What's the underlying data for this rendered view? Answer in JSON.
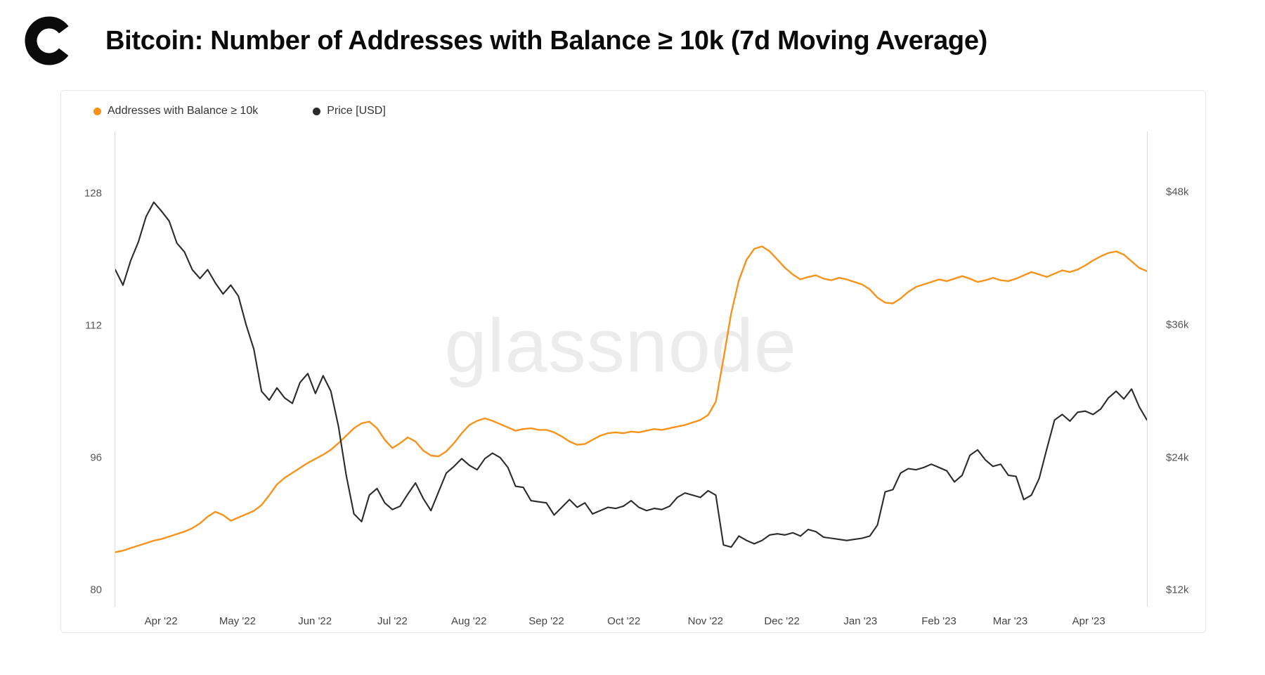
{
  "header": {
    "title": "Bitcoin: Number of Addresses with Balance ≥ 10k (7d Moving Average)",
    "logo_name": "glassnode-c-logo"
  },
  "watermark": "glassnode",
  "colors": {
    "addresses_line": "#f7931a",
    "price_line": "#2b2b2b",
    "axis_text": "#555555",
    "watermark": "#ececec"
  },
  "chart_data": {
    "type": "line",
    "title": "Bitcoin: Number of Addresses with Balance ≥ 10k (7d Moving Average)",
    "x_range": [
      "mid-Mar 2022",
      "late Apr 2023"
    ],
    "grid": "off",
    "legend_position": "top-left",
    "x_ticks": [
      {
        "label": "Apr '22",
        "pos": 0.045
      },
      {
        "label": "May '22",
        "pos": 0.119
      },
      {
        "label": "Jun '22",
        "pos": 0.194
      },
      {
        "label": "Jul '22",
        "pos": 0.269
      },
      {
        "label": "Aug '22",
        "pos": 0.343
      },
      {
        "label": "Sep '22",
        "pos": 0.418
      },
      {
        "label": "Oct '22",
        "pos": 0.493
      },
      {
        "label": "Nov '22",
        "pos": 0.572
      },
      {
        "label": "Dec '22",
        "pos": 0.646
      },
      {
        "label": "Jan '23",
        "pos": 0.722
      },
      {
        "label": "Feb '23",
        "pos": 0.798
      },
      {
        "label": "Mar '23",
        "pos": 0.867
      },
      {
        "label": "Apr '23",
        "pos": 0.943
      }
    ],
    "left_axis": {
      "label": "Addresses with Balance ≥ 10k",
      "min": 78,
      "max": 135.5,
      "ticks": [
        {
          "label": "128",
          "value": 128
        },
        {
          "label": "112",
          "value": 112
        },
        {
          "label": "96",
          "value": 96
        },
        {
          "label": "80",
          "value": 80
        }
      ]
    },
    "right_axis": {
      "label": "Price [USD]",
      "min": 10500,
      "max": 53500,
      "ticks": [
        {
          "label": "$48k",
          "value": 48000
        },
        {
          "label": "$36k",
          "value": 36000
        },
        {
          "label": "$24k",
          "value": 24000
        },
        {
          "label": "$12k",
          "value": 12000
        }
      ]
    },
    "series": [
      {
        "name": "Addresses with Balance ≥ 10k",
        "axis": "left",
        "color": "#f7931a",
        "width": 2.4,
        "values": [
          84.6,
          84.8,
          85.1,
          85.4,
          85.7,
          86.0,
          86.2,
          86.5,
          86.8,
          87.1,
          87.5,
          88.1,
          88.9,
          89.5,
          89.1,
          88.4,
          88.8,
          89.2,
          89.6,
          90.3,
          91.5,
          92.8,
          93.6,
          94.2,
          94.8,
          95.4,
          95.9,
          96.4,
          97.0,
          97.8,
          98.7,
          99.6,
          100.2,
          100.4,
          99.6,
          98.2,
          97.2,
          97.8,
          98.5,
          98.0,
          96.9,
          96.3,
          96.2,
          96.8,
          97.8,
          99.0,
          100.0,
          100.5,
          100.8,
          100.5,
          100.1,
          99.7,
          99.3,
          99.5,
          99.6,
          99.4,
          99.4,
          99.1,
          98.6,
          98.0,
          97.6,
          97.7,
          98.2,
          98.7,
          99.0,
          99.1,
          99.0,
          99.2,
          99.1,
          99.3,
          99.5,
          99.4,
          99.6,
          99.8,
          100.0,
          100.3,
          100.6,
          101.2,
          102.8,
          108.0,
          113.5,
          117.5,
          120.0,
          121.3,
          121.6,
          121.0,
          120.0,
          119.0,
          118.2,
          117.6,
          117.9,
          118.1,
          117.7,
          117.5,
          117.8,
          117.6,
          117.3,
          117.0,
          116.4,
          115.4,
          114.8,
          114.7,
          115.3,
          116.1,
          116.7,
          117.0,
          117.3,
          117.6,
          117.4,
          117.7,
          118.0,
          117.7,
          117.3,
          117.5,
          117.8,
          117.5,
          117.4,
          117.7,
          118.1,
          118.5,
          118.2,
          117.9,
          118.3,
          118.7,
          118.5,
          118.8,
          119.3,
          119.9,
          120.4,
          120.8,
          121.0,
          120.6,
          119.8,
          119.0,
          118.6
        ]
      },
      {
        "name": "Price [USD]",
        "axis": "right",
        "color": "#2b2b2b",
        "width": 2.1,
        "values": [
          41000,
          39600,
          41800,
          43500,
          45800,
          47100,
          46300,
          45400,
          43400,
          42600,
          41000,
          40200,
          41000,
          39800,
          38800,
          39600,
          38600,
          36000,
          33800,
          30000,
          29200,
          30300,
          29400,
          28900,
          30800,
          31600,
          29800,
          31400,
          30000,
          26800,
          22400,
          18900,
          18200,
          20600,
          21200,
          19900,
          19300,
          19600,
          20700,
          21700,
          20300,
          19200,
          20900,
          22600,
          23200,
          23900,
          23300,
          22900,
          23900,
          24400,
          24000,
          23100,
          21400,
          21300,
          20100,
          20000,
          19900,
          18800,
          19500,
          20200,
          19500,
          19900,
          18900,
          19200,
          19500,
          19400,
          19600,
          20100,
          19500,
          19200,
          19400,
          19300,
          19600,
          20400,
          20800,
          20600,
          20400,
          21000,
          20600,
          16100,
          15900,
          16900,
          16500,
          16200,
          16500,
          17000,
          17100,
          17000,
          17200,
          16900,
          17500,
          17300,
          16800,
          16700,
          16600,
          16500,
          16600,
          16700,
          16900,
          17900,
          20900,
          21100,
          22600,
          23000,
          22900,
          23100,
          23400,
          23100,
          22800,
          21800,
          22400,
          24200,
          24700,
          23800,
          23200,
          23400,
          22400,
          22300,
          20200,
          20600,
          22100,
          24800,
          27400,
          27900,
          27300,
          28100,
          28200,
          27900,
          28400,
          29400,
          30000,
          29300,
          30200,
          28600,
          27400
        ]
      }
    ]
  }
}
